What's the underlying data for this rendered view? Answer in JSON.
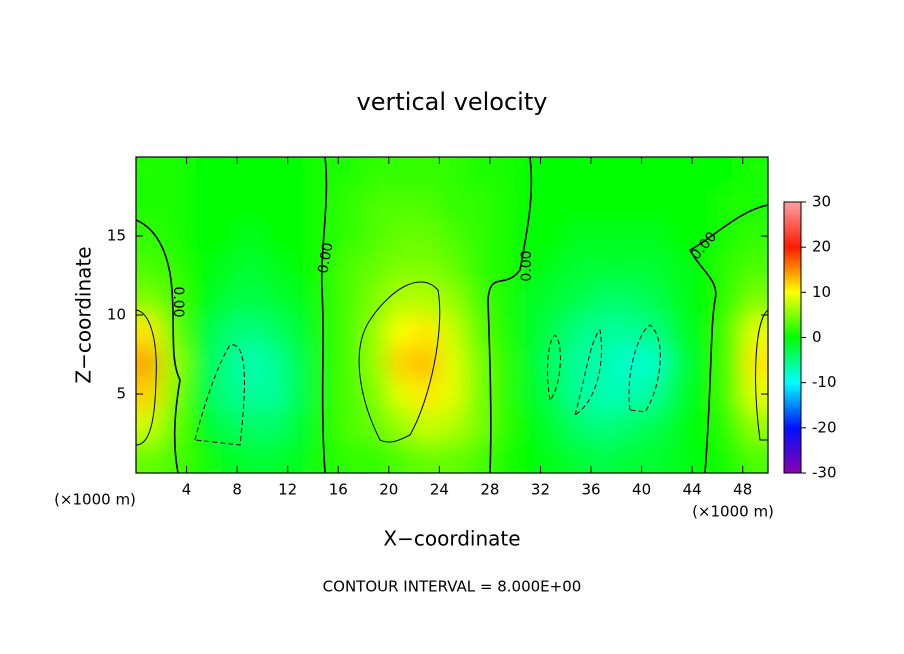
{
  "chart_data": {
    "type": "contour",
    "title": "vertical velocity",
    "xlabel": "X−coordinate",
    "ylabel": "Z−coordinate",
    "x_unit_left": "(×1000 m)",
    "x_unit_right": "(×1000 m)",
    "footer": "CONTOUR INTERVAL = 8.000E+00",
    "contour_labels": [
      "0.00",
      "0.00",
      "0.00",
      "0.00",
      "0.00"
    ],
    "xlim": [
      0,
      50
    ],
    "ylim": [
      0,
      20
    ],
    "xticks": [
      4,
      8,
      12,
      16,
      20,
      24,
      28,
      32,
      36,
      40,
      44,
      48
    ],
    "yticks": [
      5,
      10,
      15
    ],
    "zlim": [
      -30,
      30
    ],
    "zticks": [
      30,
      20,
      10,
      0,
      -10,
      -20,
      -30
    ],
    "colors": [
      "#8a00b0",
      "#0010ff",
      "#00ffff",
      "#00ff00",
      "#ffff00",
      "#ff1a00",
      "#ffa0a0"
    ],
    "x": [
      1,
      3,
      5,
      7,
      9,
      11,
      13,
      15,
      17,
      19,
      21,
      23,
      25,
      27,
      29,
      31,
      33,
      35,
      37,
      39,
      41,
      43,
      45,
      47,
      49
    ],
    "y": [
      1,
      3,
      5,
      7,
      9,
      11,
      13,
      15,
      17,
      19
    ],
    "z": [
      [
        4,
        3,
        1,
        -1,
        -2,
        -2,
        -1,
        1,
        2,
        2,
        3,
        4,
        4,
        3,
        1,
        0,
        -1,
        -2,
        -3,
        -2,
        -2,
        -1,
        0,
        1,
        3
      ],
      [
        8,
        4,
        0,
        -3,
        -4,
        -4,
        -2,
        1,
        3,
        4,
        6,
        8,
        7,
        5,
        2,
        0,
        -2,
        -4,
        -5,
        -4,
        -3,
        -1,
        0,
        2,
        6
      ],
      [
        12,
        5,
        -1,
        -5,
        -6,
        -6,
        -3,
        1,
        3,
        5,
        9,
        11,
        9,
        5,
        2,
        -1,
        -3,
        -6,
        -7,
        -7,
        -6,
        -2,
        0,
        3,
        9
      ],
      [
        14,
        6,
        -1,
        -5,
        -7,
        -6,
        -3,
        1,
        3,
        6,
        12,
        13,
        9,
        5,
        2,
        -1,
        -4,
        -6,
        -7,
        -8,
        -8,
        -3,
        0,
        3,
        11
      ],
      [
        11,
        4,
        -1,
        -4,
        -5,
        -4,
        -2,
        1,
        3,
        6,
        10,
        11,
        8,
        4,
        1,
        -1,
        -3,
        -5,
        -6,
        -6,
        -5,
        -2,
        0,
        3,
        9
      ],
      [
        5,
        3,
        0,
        -2,
        -3,
        -2,
        -1,
        1,
        3,
        5,
        7,
        7,
        6,
        3,
        1,
        -1,
        -2,
        -3,
        -4,
        -4,
        -3,
        -1,
        0,
        2,
        5
      ],
      [
        3,
        2,
        0,
        -1,
        -2,
        -1,
        0,
        1,
        3,
        4,
        5,
        5,
        4,
        2,
        1,
        0,
        -1,
        -2,
        -2,
        -2,
        -2,
        -1,
        0,
        2,
        3
      ],
      [
        2,
        1,
        0,
        0,
        -1,
        0,
        0,
        1,
        2,
        3,
        4,
        4,
        3,
        2,
        1,
        0,
        0,
        -1,
        -1,
        -1,
        -1,
        0,
        0,
        1,
        2
      ],
      [
        1,
        1,
        0,
        0,
        0,
        0,
        0,
        1,
        2,
        3,
        3,
        3,
        2,
        2,
        1,
        0,
        0,
        0,
        0,
        0,
        0,
        0,
        0,
        1,
        1
      ],
      [
        1,
        1,
        0,
        0,
        0,
        0,
        0,
        1,
        1,
        2,
        2,
        2,
        2,
        1,
        1,
        0,
        0,
        0,
        0,
        0,
        0,
        0,
        0,
        0,
        1
      ]
    ]
  }
}
